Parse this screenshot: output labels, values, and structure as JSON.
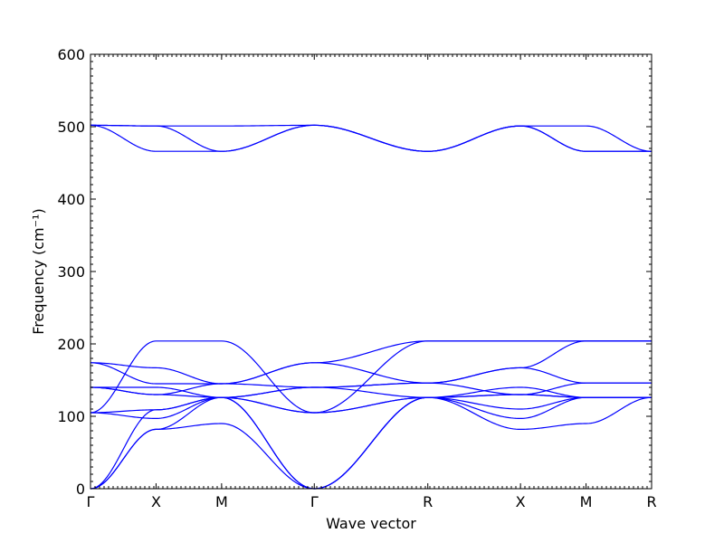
{
  "chart_data": {
    "type": "line",
    "xlabel": "Wave vector",
    "ylabel": "Frequency (cm⁻¹)",
    "ylim": [
      0,
      600
    ],
    "y_ticks": [
      "0",
      "100",
      "200",
      "300",
      "400",
      "500",
      "600"
    ],
    "x_ticks": [
      "Γ",
      "X",
      "M",
      "Γ",
      "R",
      "X",
      "M",
      "R"
    ],
    "k_points": [
      0,
      0.5,
      1.0,
      1.707,
      2.573,
      3.28,
      3.78,
      4.28
    ],
    "grid": false,
    "line_color": "#0000ff",
    "series": [
      {
        "x": [
          0,
          0.5,
          1.0,
          1.707,
          2.573,
          3.28,
          3.78,
          4.28
        ],
        "values": [
          0,
          82,
          90,
          0,
          126,
          82,
          90,
          126
        ]
      },
      {
        "x": [
          0,
          0.5,
          1.0,
          1.707,
          2.573,
          3.28,
          3.78,
          4.28
        ],
        "values": [
          0,
          82,
          126,
          0,
          126,
          97,
          126,
          126
        ]
      },
      {
        "x": [
          0,
          0.5,
          1.0,
          1.707,
          2.573,
          3.28,
          3.78,
          4.28
        ],
        "values": [
          0,
          109,
          126,
          0,
          126,
          110,
          126,
          126
        ]
      },
      {
        "x": [
          0,
          0.5,
          1.0,
          1.707,
          2.573,
          3.28,
          3.78,
          4.28
        ],
        "values": [
          105,
          97,
          126,
          105,
          126,
          130,
          126,
          126
        ]
      },
      {
        "x": [
          0,
          0.5,
          1.0,
          1.707,
          2.573,
          3.28,
          3.78,
          4.28
        ],
        "values": [
          105,
          109,
          126,
          105,
          126,
          140,
          126,
          126
        ]
      },
      {
        "x": [
          0,
          0.5,
          1.0,
          1.707,
          2.573,
          3.28,
          3.78,
          4.28
        ],
        "values": [
          140,
          130,
          126,
          140,
          126,
          130,
          126,
          126
        ]
      },
      {
        "x": [
          0,
          0.5,
          1.0,
          1.707,
          2.573,
          3.28,
          3.78,
          4.28
        ],
        "values": [
          140,
          130,
          145,
          140,
          146,
          130,
          146,
          146
        ]
      },
      {
        "x": [
          0,
          0.5,
          1.0,
          1.707,
          2.573,
          3.28,
          3.78,
          4.28
        ],
        "values": [
          140,
          140,
          126,
          140,
          146,
          167,
          146,
          146
        ]
      },
      {
        "x": [
          0,
          0.5,
          1.0,
          1.707,
          2.573,
          3.28,
          3.78,
          4.28
        ],
        "values": [
          174,
          145,
          145,
          174,
          146,
          167,
          204,
          204
        ]
      },
      {
        "x": [
          0,
          0.5,
          1.0,
          1.707,
          2.573,
          3.28,
          3.78,
          4.28
        ],
        "values": [
          174,
          167,
          145,
          174,
          204,
          204,
          204,
          204
        ]
      },
      {
        "x": [
          0,
          0.5,
          1.0,
          1.707,
          2.573,
          3.28,
          3.78,
          4.28
        ],
        "values": [
          105,
          204,
          204,
          105,
          204,
          204,
          204,
          204
        ]
      },
      {
        "x": [
          0,
          0.5,
          1.0,
          1.707,
          2.573,
          3.28,
          3.78,
          4.28
        ],
        "values": [
          502,
          466,
          466,
          502,
          466,
          501,
          466,
          466
        ]
      },
      {
        "x": [
          0,
          0.5,
          1.0,
          1.707,
          2.573,
          3.28,
          3.78,
          4.28
        ],
        "values": [
          502,
          501,
          466,
          502,
          466,
          501,
          501,
          466
        ]
      },
      {
        "x": [
          0,
          0.5,
          1.0,
          1.707,
          2.573,
          3.28,
          3.78,
          4.28
        ],
        "values": [
          502,
          501,
          501,
          502,
          466,
          501,
          466,
          466
        ]
      }
    ]
  }
}
